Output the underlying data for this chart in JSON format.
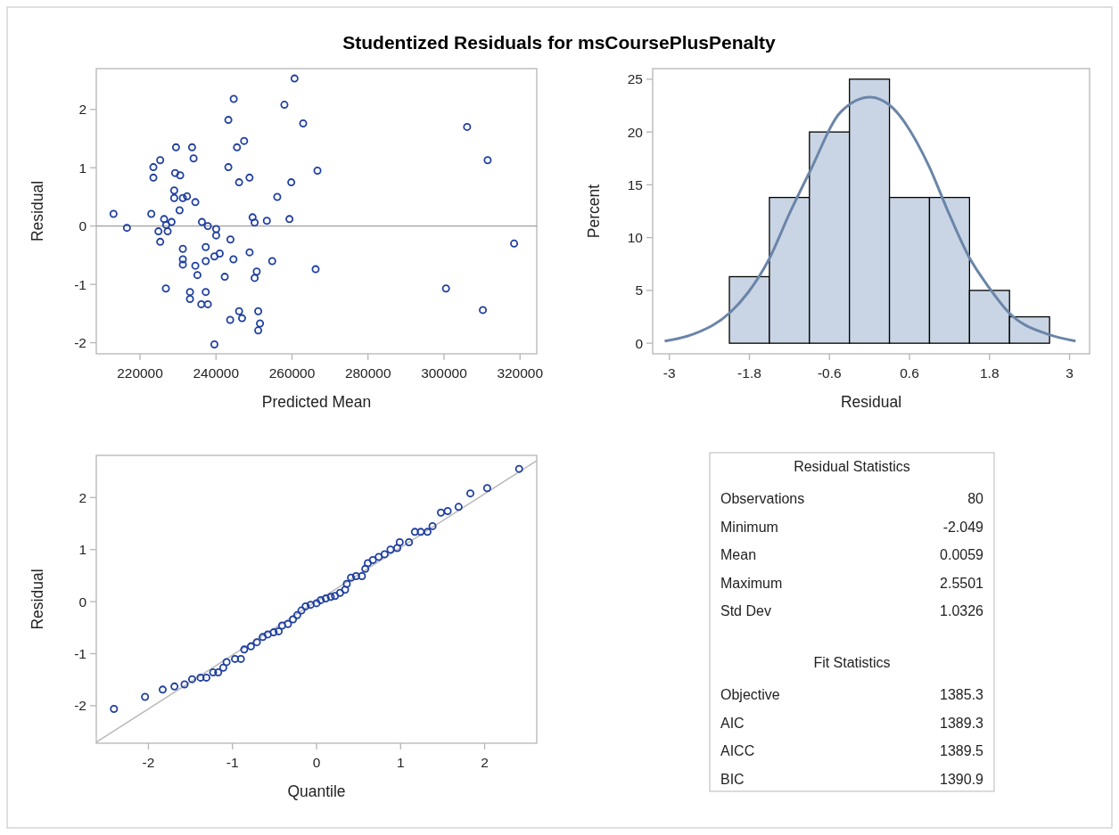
{
  "chart_data": [
    {
      "type": "scatter",
      "title": "Studentized Residuals for msCoursePlusPenalty",
      "xlabel": "Predicted Mean",
      "ylabel": "Residual",
      "marker": "circle",
      "color": "#1f3f9f",
      "grid": false,
      "xlim": [
        208500,
        324400
      ],
      "ylim": [
        -2.19,
        2.7
      ],
      "xticks": [
        220000,
        240000,
        260000,
        280000,
        300000,
        320000
      ],
      "yticks": [
        -2,
        -1,
        0,
        1,
        2
      ],
      "ref_lines": [
        {
          "axis": "y",
          "value": 0,
          "color": "#a0a0a0"
        }
      ],
      "x": [
        213030,
        216555,
        222975,
        223520,
        223520,
        225320,
        229475,
        233700,
        234100,
        229240,
        230570,
        229000,
        229000,
        231275,
        232370,
        234560,
        230410,
        226340,
        228300,
        226890,
        224855,
        227280,
        225320,
        236290,
        237850,
        240040,
        240040,
        243800,
        231275,
        231275,
        231275,
        234560,
        235110,
        237300,
        237300,
        239575,
        240985,
        244590,
        242300,
        226810,
        233150,
        233150,
        237300,
        236130,
        237850,
        243720,
        246070,
        246850,
        239575,
        243250,
        244660,
        245520,
        247400,
        243250,
        246070,
        248815,
        260660,
        257995,
        262930,
        266690,
        259800,
        256115,
        249620,
        250165,
        253375,
        259325,
        306070,
        311475,
        318440,
        248835,
        254785,
        250715,
        250165,
        266215,
        300510,
        310220,
        251105,
        251575,
        251105
      ],
      "values": [
        0.21,
        -0.03,
        0.21,
        0.83,
        1.01,
        1.13,
        1.35,
        1.35,
        1.16,
        0.91,
        0.87,
        0.61,
        0.48,
        0.48,
        0.51,
        0.41,
        0.27,
        0.12,
        0.07,
        0.02,
        -0.09,
        -0.09,
        -0.27,
        0.07,
        0,
        -0.05,
        -0.16,
        -0.23,
        -0.39,
        -0.57,
        -0.66,
        -0.68,
        -0.84,
        -0.36,
        -0.6,
        -0.52,
        -0.47,
        -0.57,
        -0.87,
        -1.07,
        -1.13,
        -1.25,
        -1.13,
        -1.34,
        -1.34,
        -1.61,
        -1.46,
        -1.58,
        -2.03,
        1.82,
        2.18,
        1.35,
        1.46,
        1.01,
        0.75,
        0.83,
        2.53,
        2.08,
        1.76,
        0.95,
        0.75,
        0.5,
        0.15,
        0.06,
        0.09,
        0.12,
        1.7,
        1.13,
        -0.3,
        -0.45,
        -0.6,
        -0.78,
        -0.89,
        -0.74,
        -1.07,
        -1.44,
        -1.46,
        -1.67,
        -1.79
      ]
    },
    {
      "type": "histogram",
      "xlabel": "Residual",
      "ylabel": "Percent",
      "grid": false,
      "color": "#c9d5e5",
      "xlim": [
        -3.25,
        3.3
      ],
      "ylim": [
        -1,
        26
      ],
      "xticks": [
        -3,
        -1.8,
        -0.6,
        0.6,
        1.8,
        3
      ],
      "yticks": [
        0,
        5,
        10,
        15,
        20,
        25
      ],
      "bins": [
        -2.1,
        -1.5,
        -0.9,
        -0.3,
        0.3,
        0.9,
        1.5,
        2.1,
        2.7
      ],
      "values": [
        6.3,
        13.8,
        20,
        25,
        13.8,
        13.8,
        5,
        2.5
      ],
      "series": [
        {
          "type": "line",
          "color": "#6a85a8",
          "x": [
            -3.07,
            -2.62,
            -2.09,
            -1.82,
            -1.51,
            -1.19,
            -0.89,
            -0.43,
            0.01,
            0.29,
            0.89,
            1.17,
            1.49,
            1.79,
            2.09,
            2.7,
            3.09
          ],
          "values": [
            0.2,
            0.9,
            2.9,
            4.8,
            7.9,
            12.4,
            16.3,
            21.9,
            23.3,
            22.6,
            16.8,
            12.6,
            8.2,
            5.3,
            2.9,
            0.8,
            0.2
          ]
        }
      ]
    },
    {
      "type": "scatter",
      "xlabel": "Quantile",
      "ylabel": "Residual",
      "grid": false,
      "xlim": [
        -2.62,
        2.62
      ],
      "ylim": [
        -2.72,
        2.81
      ],
      "xticks": [
        -2,
        -1,
        0,
        1,
        2
      ],
      "yticks": [
        -2,
        -1,
        0,
        1,
        2
      ],
      "series": [
        {
          "type": "line",
          "color": "#b8b8b8",
          "x": [
            -2.62,
            2.62
          ],
          "values": [
            -2.7,
            2.71
          ]
        },
        {
          "type": "scatter",
          "marker": "circle",
          "color": "#1f3f9f",
          "x": [
            -2.41,
            -2.04,
            -1.83,
            -1.69,
            -1.57,
            -1.48,
            -1.38,
            -1.31,
            -1.23,
            -1.17,
            -1.11,
            -1.07,
            -0.97,
            -0.9,
            -0.86,
            -0.78,
            -0.71,
            -0.64,
            -0.58,
            -0.51,
            -0.45,
            -0.41,
            -0.34,
            -0.28,
            -0.23,
            -0.18,
            -0.13,
            -0.07,
            0,
            0.05,
            0.11,
            0.17,
            0.22,
            0.28,
            0.34,
            0.36,
            0.41,
            0.47,
            0.54,
            0.58,
            0.61,
            0.67,
            0.74,
            0.81,
            0.88,
            0.96,
            0.99,
            1.1,
            1.17,
            1.24,
            1.32,
            1.38,
            1.48,
            1.56,
            1.69,
            1.83,
            2.03,
            2.41
          ],
          "values": [
            -2.06,
            -1.83,
            -1.69,
            -1.63,
            -1.59,
            -1.49,
            -1.46,
            -1.46,
            -1.36,
            -1.36,
            -1.27,
            -1.16,
            -1.1,
            -1.1,
            -0.92,
            -0.86,
            -0.78,
            -0.68,
            -0.63,
            -0.59,
            -0.57,
            -0.46,
            -0.43,
            -0.34,
            -0.26,
            -0.17,
            -0.09,
            -0.06,
            -0.03,
            0.03,
            0.06,
            0.09,
            0.11,
            0.17,
            0.23,
            0.34,
            0.46,
            0.49,
            0.49,
            0.63,
            0.74,
            0.8,
            0.86,
            0.91,
            1,
            1.03,
            1.14,
            1.14,
            1.34,
            1.34,
            1.34,
            1.45,
            1.71,
            1.74,
            1.82,
            2.08,
            2.18,
            2.55
          ]
        }
      ]
    },
    {
      "type": "other",
      "title": "Residual Statistics",
      "categories": [
        "Observations",
        "Minimum",
        "Mean",
        "Maximum",
        "Std Dev"
      ],
      "values": [
        80,
        -2.049,
        0.0059,
        2.5501,
        1.0326
      ],
      "data_labels": true
    },
    {
      "type": "other",
      "title": "Fit Statistics",
      "categories": [
        "Objective",
        "AIC",
        "AICC",
        "BIC"
      ],
      "values": [
        1385.3,
        1389.3,
        1389.5,
        1390.9
      ],
      "data_labels": true
    }
  ]
}
